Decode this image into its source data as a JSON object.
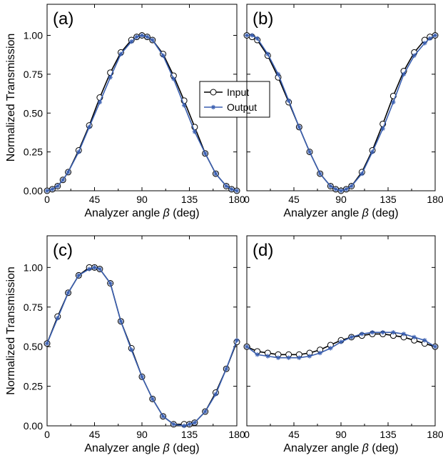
{
  "chart_data": [
    {
      "type": "line",
      "panel_label": "(a)",
      "xlabel_prefix": "Analyzer angle ",
      "xlabel_symbol": "β",
      "xlabel_suffix": " (deg)",
      "ylabel": "Normalized Transmission",
      "xlim": [
        0,
        180
      ],
      "ylim": [
        0,
        1.2
      ],
      "xticks": [
        "0",
        "45",
        "90",
        "135",
        "180"
      ],
      "yticks": [
        "0.00",
        "0.25",
        "0.50",
        "0.75",
        "1.00"
      ],
      "legend": "center-right",
      "x": [
        0,
        5,
        10,
        15,
        20,
        30,
        40,
        50,
        60,
        70,
        80,
        85,
        90,
        95,
        100,
        110,
        120,
        130,
        140,
        150,
        160,
        170,
        175,
        180
      ],
      "series": [
        {
          "name": "Input",
          "color": "#000000",
          "marker": "circle",
          "values": [
            0.0,
            0.01,
            0.03,
            0.07,
            0.12,
            0.26,
            0.42,
            0.6,
            0.76,
            0.89,
            0.97,
            0.99,
            1.0,
            0.99,
            0.97,
            0.88,
            0.74,
            0.58,
            0.41,
            0.24,
            0.11,
            0.03,
            0.01,
            0.0
          ]
        },
        {
          "name": "Output",
          "color": "#3a5fb0",
          "marker": "asterisk",
          "values": [
            0.0,
            0.01,
            0.03,
            0.07,
            0.12,
            0.25,
            0.41,
            0.57,
            0.73,
            0.88,
            0.96,
            0.99,
            1.0,
            0.99,
            0.97,
            0.87,
            0.72,
            0.55,
            0.38,
            0.24,
            0.11,
            0.03,
            0.01,
            0.0
          ]
        }
      ]
    },
    {
      "type": "line",
      "panel_label": "(b)",
      "xlabel_prefix": "Analyzer angle ",
      "xlabel_symbol": "β",
      "xlabel_suffix": " (deg)",
      "ylabel": "",
      "xlim": [
        0,
        180
      ],
      "ylim": [
        0,
        1.2
      ],
      "xticks": [
        "0",
        "45",
        "90",
        "135",
        "180"
      ],
      "yticks": [],
      "x": [
        0,
        5,
        10,
        20,
        30,
        40,
        50,
        60,
        70,
        80,
        85,
        90,
        95,
        100,
        110,
        120,
        130,
        140,
        150,
        160,
        170,
        175,
        180
      ],
      "series": [
        {
          "name": "Input",
          "color": "#000000",
          "marker": "circle",
          "values": [
            1.0,
            0.99,
            0.97,
            0.87,
            0.73,
            0.57,
            0.41,
            0.25,
            0.11,
            0.03,
            0.01,
            0.0,
            0.01,
            0.03,
            0.12,
            0.26,
            0.43,
            0.61,
            0.77,
            0.89,
            0.97,
            0.99,
            1.0
          ]
        },
        {
          "name": "Output",
          "color": "#3a5fb0",
          "marker": "asterisk",
          "values": [
            1.0,
            1.0,
            0.98,
            0.88,
            0.75,
            0.58,
            0.41,
            0.25,
            0.11,
            0.03,
            0.01,
            0.0,
            0.01,
            0.03,
            0.11,
            0.25,
            0.4,
            0.57,
            0.75,
            0.87,
            0.95,
            0.98,
            1.0
          ]
        }
      ]
    },
    {
      "type": "line",
      "panel_label": "(c)",
      "xlabel_prefix": "Analyzer angle ",
      "xlabel_symbol": "β",
      "xlabel_suffix": " (deg)",
      "ylabel": "Normalized Transmission",
      "xlim": [
        0,
        180
      ],
      "ylim": [
        0,
        1.2
      ],
      "xticks": [
        "0",
        "45",
        "90",
        "135",
        "180"
      ],
      "yticks": [
        "0.00",
        "0.25",
        "0.50",
        "0.75",
        "1.00"
      ],
      "x": [
        0,
        10,
        20,
        30,
        40,
        45,
        50,
        60,
        70,
        80,
        90,
        100,
        110,
        120,
        130,
        135,
        140,
        150,
        160,
        170,
        180
      ],
      "series": [
        {
          "name": "Input",
          "color": "#000000",
          "marker": "circle",
          "values": [
            0.52,
            0.69,
            0.84,
            0.95,
            1.0,
            1.0,
            0.99,
            0.9,
            0.66,
            0.49,
            0.31,
            0.17,
            0.06,
            0.01,
            0.01,
            0.01,
            0.02,
            0.09,
            0.21,
            0.36,
            0.53
          ]
        },
        {
          "name": "Output",
          "color": "#3a5fb0",
          "marker": "asterisk",
          "values": [
            0.52,
            0.68,
            0.84,
            0.95,
            0.99,
            1.0,
            0.99,
            0.9,
            0.66,
            0.48,
            0.31,
            0.17,
            0.06,
            0.01,
            0.0,
            0.01,
            0.02,
            0.09,
            0.2,
            0.36,
            0.54
          ]
        }
      ]
    },
    {
      "type": "line",
      "panel_label": "(d)",
      "xlabel_prefix": "Analyzer angle ",
      "xlabel_symbol": "β",
      "xlabel_suffix": " (deg)",
      "ylabel": "",
      "xlim": [
        0,
        180
      ],
      "ylim": [
        0,
        1.2
      ],
      "xticks": [
        "0",
        "45",
        "90",
        "135",
        "180"
      ],
      "yticks": [],
      "x": [
        0,
        10,
        20,
        30,
        40,
        50,
        60,
        70,
        80,
        90,
        100,
        110,
        120,
        130,
        140,
        150,
        160,
        170,
        180
      ],
      "series": [
        {
          "name": "Input",
          "color": "#000000",
          "marker": "circle",
          "values": [
            0.5,
            0.47,
            0.46,
            0.45,
            0.45,
            0.45,
            0.46,
            0.48,
            0.51,
            0.54,
            0.56,
            0.57,
            0.58,
            0.58,
            0.57,
            0.56,
            0.54,
            0.52,
            0.5
          ]
        },
        {
          "name": "Output",
          "color": "#3a5fb0",
          "marker": "asterisk",
          "values": [
            0.5,
            0.45,
            0.44,
            0.43,
            0.43,
            0.43,
            0.44,
            0.46,
            0.49,
            0.53,
            0.56,
            0.58,
            0.59,
            0.59,
            0.59,
            0.58,
            0.56,
            0.54,
            0.5
          ]
        }
      ]
    }
  ]
}
